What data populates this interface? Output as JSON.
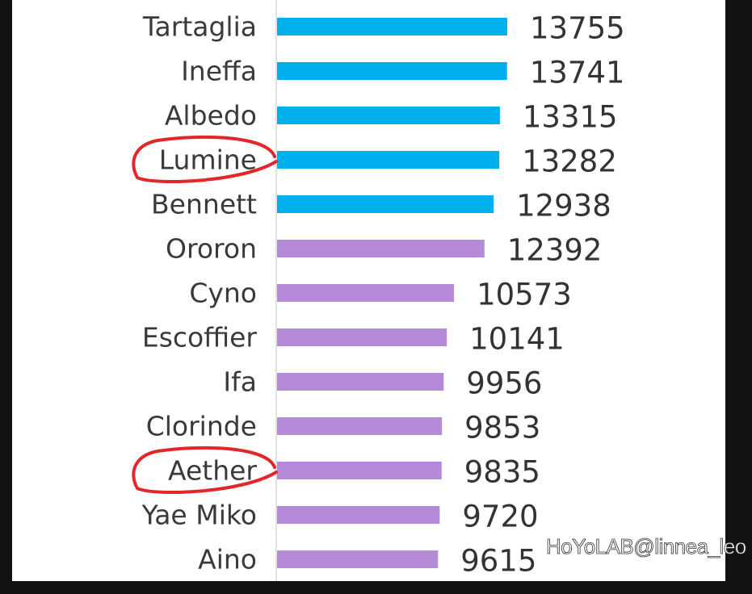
{
  "chart_data": {
    "type": "bar",
    "orientation": "horizontal",
    "categories": [
      "Tartaglia",
      "Ineffa",
      "Albedo",
      "Lumine",
      "Bennett",
      "Ororon",
      "Cyno",
      "Escoffier",
      "Ifa",
      "Clorinde",
      "Aether",
      "Yae Miko",
      "Aino"
    ],
    "values": [
      13755,
      13741,
      13315,
      13282,
      12938,
      12392,
      10573,
      10141,
      9956,
      9853,
      9835,
      9720,
      9615
    ],
    "bar_colors": [
      "#00b0ec",
      "#00b0ec",
      "#00b0ec",
      "#00b0ec",
      "#00b0ec",
      "#b48ad9",
      "#b48ad9",
      "#b48ad9",
      "#b48ad9",
      "#b48ad9",
      "#b48ad9",
      "#b48ad9",
      "#b48ad9"
    ],
    "highlighted": [
      "Lumine",
      "Aether"
    ],
    "highlight_color": "#e0282a",
    "xlim": [
      0,
      14000
    ],
    "grid": false,
    "data_labels": true
  },
  "watermark": "HoYoLAB@linnea_leo"
}
